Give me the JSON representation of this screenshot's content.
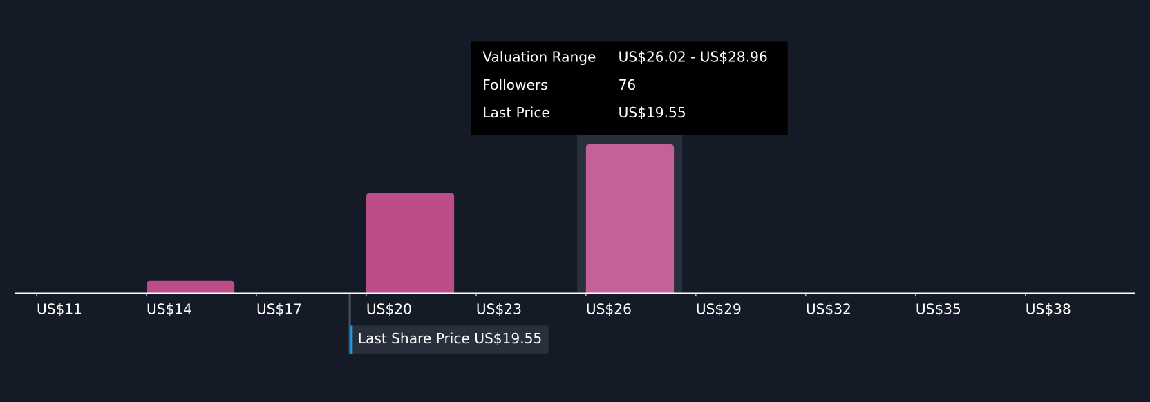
{
  "chart_data": {
    "type": "histogram",
    "bins": [
      11,
      14,
      17,
      20,
      23,
      26,
      29,
      32,
      35,
      38,
      41
    ],
    "values": [
      0,
      6,
      0,
      51,
      0,
      76,
      0,
      0,
      0,
      0
    ],
    "colors": [
      "#bd4d89",
      "#bd4d89",
      "#bd4d89",
      "#bd4d89",
      "#bd4d89",
      "#c46199",
      "#bd4d89",
      "#bd4d89",
      "#bd4d89",
      "#bd4d89"
    ],
    "xlim": [
      10.4,
      41
    ],
    "xticks": [
      {
        "value": 11,
        "label": "US$11"
      },
      {
        "value": 14,
        "label": "US$14"
      },
      {
        "value": 17,
        "label": "US$17"
      },
      {
        "value": 20,
        "label": "US$20"
      },
      {
        "value": 23,
        "label": "US$23"
      },
      {
        "value": 26,
        "label": "US$26"
      },
      {
        "value": 29,
        "label": "US$29"
      },
      {
        "value": 32,
        "label": "US$32"
      },
      {
        "value": 35,
        "label": "US$35"
      },
      {
        "value": 38,
        "label": "US$38"
      }
    ],
    "ylim": [
      0,
      80
    ],
    "last_price": {
      "label": "Last Share Price",
      "value": 19.55,
      "value_label": "US$19.55"
    },
    "tooltip": {
      "rows": [
        {
          "label": "Valuation Range",
          "value": "US$26.02 - US$28.96"
        },
        {
          "label": "Followers",
          "value": "76"
        },
        {
          "label": "Last Price",
          "value": "US$19.55"
        }
      ]
    }
  }
}
